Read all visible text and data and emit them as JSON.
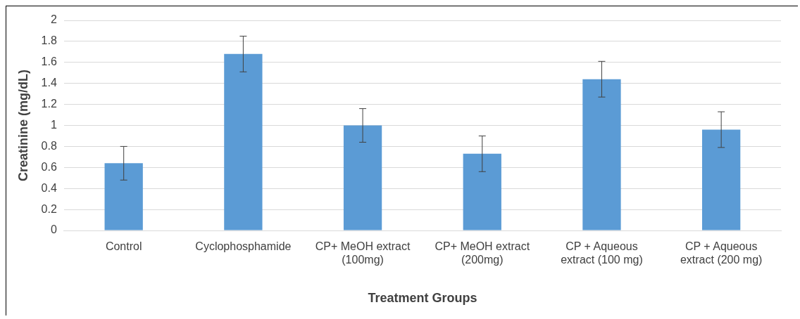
{
  "chart_data": {
    "type": "bar",
    "xlabel": "Treatment Groups",
    "ylabel": "Creatinine (mg/dL)",
    "categories": [
      "Control",
      "Cyclophosphamide",
      "CP+ MeOH extract (100mg)",
      "CP+ MeOH extract (200mg)",
      "CP + Aqueous extract (100 mg)",
      "CP + Aqueous extract (200 mg)"
    ],
    "values": [
      0.64,
      1.68,
      1.0,
      0.73,
      1.44,
      0.96
    ],
    "errors": [
      0.16,
      0.17,
      0.16,
      0.17,
      0.17,
      0.17
    ],
    "color": "#5b9bd5",
    "ylim": [
      0,
      2
    ],
    "yticks": [
      0,
      0.2,
      0.4,
      0.6,
      0.8,
      1,
      1.2,
      1.4,
      1.6,
      1.8,
      2
    ],
    "grid": "y",
    "legend": false
  }
}
